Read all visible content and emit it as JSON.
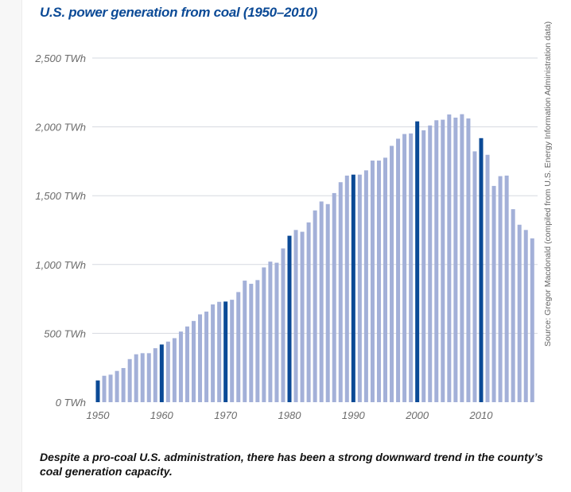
{
  "chart_data": {
    "type": "bar",
    "title": "U.S. power generation from coal (1950–2010)",
    "caption": "Despite a pro-coal U.S. administration, there has been a strong downward trend in the county’s coal generation capacity.",
    "source": "Source: Gregor Macdonald (compiled from U.S. Energy Information Administration data)",
    "unit": "TWh",
    "ylim": [
      0,
      2500
    ],
    "y_ticks": [
      0,
      500,
      1000,
      1500,
      2000,
      2500
    ],
    "y_tick_labels": [
      "0 TWh",
      "500 TWh",
      "1,000 TWh",
      "1,500 TWh",
      "2,000 TWh",
      "2,500 TWh"
    ],
    "x_tick_labels": [
      "1950",
      "1960",
      "1970",
      "1980",
      "1990",
      "2000",
      "2010"
    ],
    "grid": true,
    "colors": {
      "bar": "#a3b0d8",
      "highlight": "#0b4a96",
      "title": "#0b4a96"
    },
    "highlight_years": [
      1950,
      1960,
      1970,
      1980,
      1990,
      2000,
      2010
    ],
    "years": [
      1950,
      1951,
      1952,
      1953,
      1954,
      1955,
      1956,
      1957,
      1958,
      1959,
      1960,
      1961,
      1962,
      1963,
      1964,
      1965,
      1966,
      1967,
      1968,
      1969,
      1970,
      1971,
      1972,
      1973,
      1974,
      1975,
      1976,
      1977,
      1978,
      1979,
      1980,
      1981,
      1982,
      1983,
      1984,
      1985,
      1986,
      1987,
      1988,
      1989,
      1990,
      1991,
      1992,
      1993,
      1994,
      1995,
      1996,
      1997,
      1998,
      1999,
      2000,
      2001,
      2002,
      2003,
      2004,
      2005,
      2006,
      2007,
      2008,
      2009,
      2010,
      2011,
      2012,
      2013,
      2014,
      2015,
      2016,
      2017,
      2018
    ],
    "values": [
      158,
      192,
      200,
      227,
      248,
      313,
      348,
      356,
      356,
      392,
      419,
      440,
      465,
      513,
      550,
      590,
      638,
      658,
      710,
      729,
      731,
      744,
      800,
      883,
      860,
      887,
      979,
      1021,
      1013,
      1117,
      1209,
      1251,
      1238,
      1306,
      1393,
      1458,
      1439,
      1519,
      1598,
      1646,
      1653,
      1653,
      1684,
      1755,
      1755,
      1776,
      1862,
      1914,
      1948,
      1952,
      2040,
      1975,
      2010,
      2048,
      2052,
      2090,
      2067,
      2092,
      2061,
      1822,
      1918,
      1797,
      1571,
      1642,
      1646,
      1402,
      1289,
      1251,
      1190
    ]
  }
}
